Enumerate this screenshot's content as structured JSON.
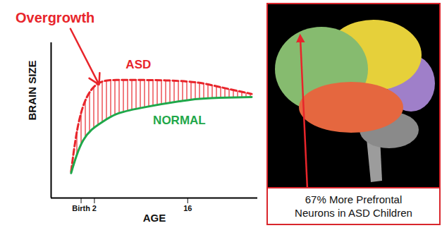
{
  "chart_data": {
    "type": "line",
    "x_label": "AGE",
    "y_label": "BRAIN SIZE",
    "annotations": [
      "Overgrowth"
    ],
    "x": [
      -1.5,
      -0.7,
      0.3,
      1.6,
      3.2,
      5.3,
      9,
      16,
      20.8,
      25.6
    ],
    "series": [
      {
        "name": "ASD",
        "color": "#e8252b",
        "line_style": "dashed",
        "values": [
          17,
          41,
          59,
          70,
          75,
          76,
          76,
          75,
          71.5,
          67
        ]
      },
      {
        "name": "NORMAL",
        "color": "#1fa84a",
        "line_style": "solid",
        "values": [
          16,
          27,
          37,
          44,
          49,
          54,
          58,
          63,
          64.5,
          65
        ]
      }
    ],
    "xlim": [
      -4.5,
      26.5
    ],
    "xticks": [
      {
        "value": 0,
        "label": "Birth"
      },
      2,
      16
    ],
    "ylim": [
      0,
      100
    ],
    "yticks": [],
    "tick_labels": "x",
    "grid": false
  },
  "image_panel": {
    "caption": "67% More Prefrontal Neurons in ASD Children"
  }
}
